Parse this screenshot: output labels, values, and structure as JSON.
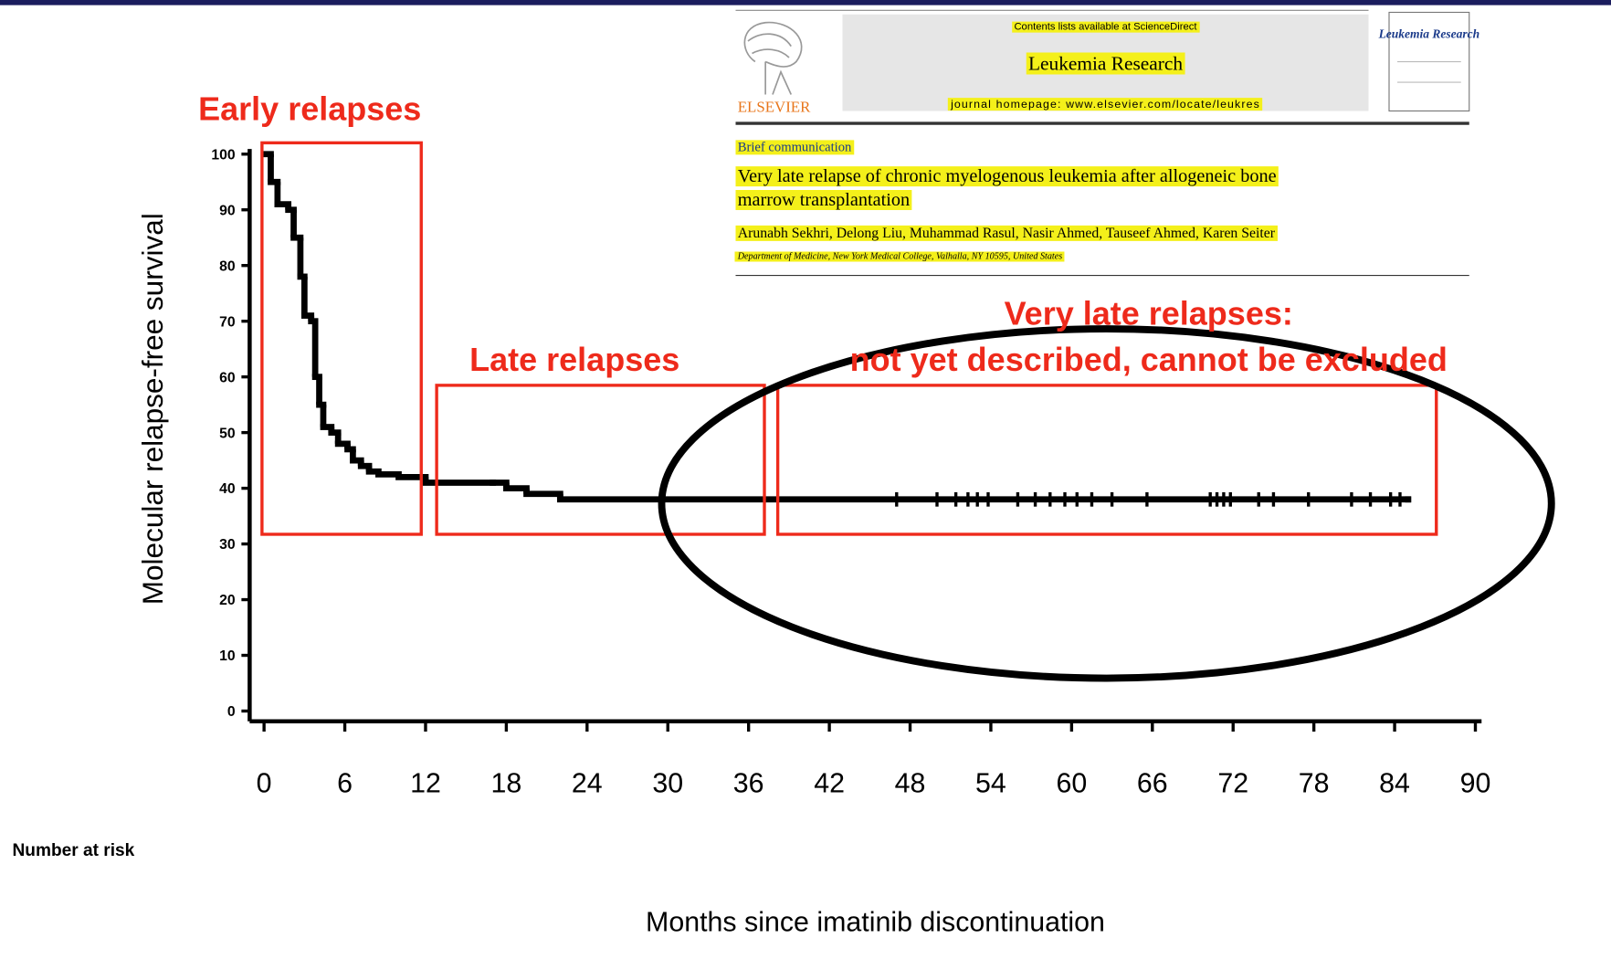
{
  "chart_data": {
    "type": "step",
    "y_label": "Molecular relapse-free survival",
    "x_label": "Months since imatinib discontinuation",
    "risk_label": "Number at risk",
    "annotations": [
      "Early relapses",
      "Late relapses",
      "Very late relapses:",
      "not yet described, cannot be excluded"
    ],
    "color": "#000000",
    "x": [
      0,
      0.5,
      1,
      1.8,
      2.2,
      2.7,
      3,
      3.5,
      3.8,
      4.1,
      4.4,
      5,
      5.5,
      6.2,
      6.6,
      7.2,
      7.8,
      8.5,
      10,
      12,
      17,
      18,
      19.5,
      22,
      85
    ],
    "values": [
      100,
      95,
      91,
      90,
      85,
      78,
      71,
      70,
      60,
      55,
      51,
      50,
      48,
      47,
      45,
      44,
      43,
      42.5,
      42,
      41,
      41,
      40,
      39,
      38,
      38
    ],
    "censored": {
      "x": [
        47,
        50,
        51.4,
        52.3,
        53,
        53.8,
        56,
        57.3,
        58.4,
        59.5,
        60.4,
        61.5,
        63,
        65.6,
        70.3,
        70.8,
        71.3,
        71.8,
        73.9,
        75,
        77.6,
        80.8,
        82.2,
        83.7,
        84.4
      ],
      "values": [
        38,
        38,
        38,
        38,
        38,
        38,
        38,
        38,
        38,
        38,
        38,
        38,
        38,
        38,
        38,
        38,
        38,
        38,
        38,
        38,
        38,
        38,
        38,
        38,
        38
      ]
    },
    "xlim": [
      0,
      90
    ],
    "ylim": [
      0,
      100
    ],
    "xticks": [
      0,
      6,
      12,
      18,
      24,
      30,
      36,
      42,
      48,
      54,
      60,
      66,
      72,
      78,
      84,
      90
    ],
    "yticks": [
      0,
      10,
      20,
      30,
      40,
      50,
      60,
      70,
      80,
      90,
      100
    ]
  },
  "inset": {
    "publisher": "ELSEVIER",
    "contents": "Contents lists available at ScienceDirect",
    "journal": "Leukemia Research",
    "homepage": "journal homepage: www.elsevier.com/locate/leukres",
    "cover": "Leukemia Research",
    "section": "Brief communication",
    "title_lines": [
      "Very late relapse of chronic myelogenous leukemia after allogeneic bone",
      "marrow transplantation"
    ],
    "authors": "Arunabh Sekhri, Delong Liu, Muhammad Rasul, Nasir Ahmed, Tauseef Ahmed, Karen Seiter",
    "affiliation": "Department of Medicine, New York Medical College, Valhalla, NY 10595, United States"
  }
}
